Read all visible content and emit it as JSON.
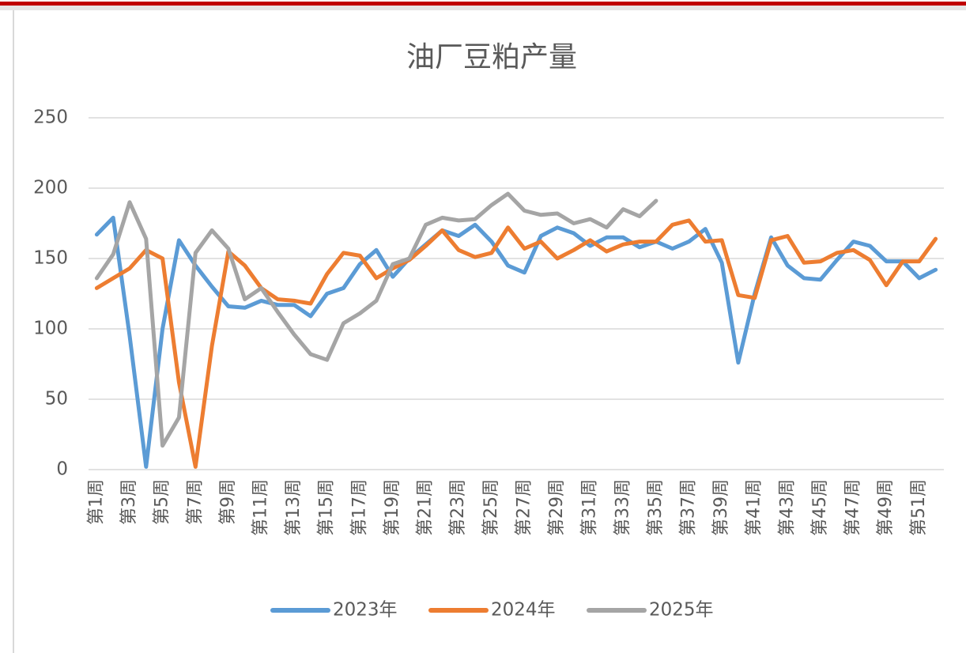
{
  "chart_data": {
    "type": "line",
    "title": "油厂豆粕产量",
    "categories": [
      "第1周",
      null,
      "第3周",
      null,
      "第5周",
      null,
      "第7周",
      null,
      "第9周",
      null,
      "第11周",
      null,
      "第13周",
      null,
      "第15周",
      null,
      "第17周",
      null,
      "第19周",
      null,
      "第21周",
      null,
      "第23周",
      null,
      "第25周",
      null,
      "第27周",
      null,
      "第29周",
      null,
      "第31周",
      null,
      "第33周",
      null,
      "第35周",
      null,
      "第37周",
      null,
      "第39周",
      null,
      "第41周",
      null,
      "第43周",
      null,
      "第45周",
      null,
      "第47周",
      null,
      "第49周",
      null,
      "第51周",
      null
    ],
    "series": [
      {
        "name": "2023年",
        "color": "#5b9bd5",
        "values": [
          167,
          179,
          95,
          2,
          100,
          163,
          145,
          130,
          116,
          115,
          120,
          117,
          117,
          109,
          125,
          129,
          146,
          156,
          137,
          150,
          160,
          170,
          166,
          174,
          162,
          145,
          140,
          166,
          172,
          168,
          159,
          165,
          165,
          158,
          162,
          157,
          162,
          171,
          147,
          76,
          125,
          165,
          145,
          136,
          135,
          149,
          162,
          159,
          148,
          148,
          136,
          142
        ]
      },
      {
        "name": "2024年",
        "color": "#ed7d31",
        "values": [
          129,
          136,
          143,
          156,
          150,
          62,
          2,
          88,
          155,
          145,
          129,
          121,
          120,
          118,
          139,
          154,
          152,
          136,
          143,
          149,
          159,
          170,
          156,
          151,
          154,
          172,
          157,
          162,
          150,
          156,
          163,
          155,
          160,
          162,
          162,
          174,
          177,
          162,
          163,
          124,
          122,
          163,
          166,
          147,
          148,
          154,
          156,
          149,
          131,
          148,
          148,
          164
        ]
      },
      {
        "name": "2025年",
        "color": "#a5a5a5",
        "values": [
          136,
          153,
          190,
          164,
          17,
          37,
          154,
          170,
          157,
          121,
          129,
          112,
          96,
          82,
          78,
          104,
          111,
          120,
          146,
          150,
          174,
          179,
          177,
          178,
          188,
          196,
          184,
          181,
          182,
          175,
          178,
          172,
          185,
          180,
          191,
          null,
          null,
          null,
          null,
          null,
          null,
          null,
          null,
          null,
          null,
          null,
          null,
          null,
          null,
          null,
          null,
          null
        ]
      }
    ],
    "ylim": [
      0,
      250
    ],
    "yticks": [
      0,
      50,
      100,
      150,
      200,
      250
    ],
    "grid": true,
    "legend": "bottom"
  }
}
